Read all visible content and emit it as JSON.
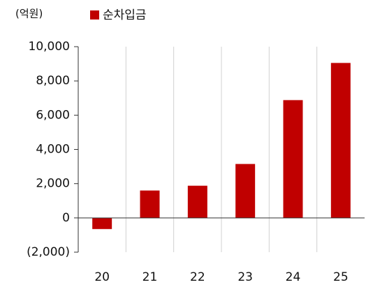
{
  "chart_data": {
    "type": "bar",
    "unit_label": "(억원)",
    "categories": [
      "20",
      "21",
      "22",
      "23",
      "24",
      "25"
    ],
    "series": [
      {
        "name": "순차입금",
        "color": "#c00000",
        "values": [
          -650,
          1600,
          1880,
          3150,
          6880,
          9050
        ]
      }
    ],
    "ylim": [
      -2000,
      10000
    ],
    "yticks": [
      {
        "value": -2000,
        "label": "(2,000)"
      },
      0,
      {
        "value": 2000,
        "label": "2,000"
      },
      {
        "value": 4000,
        "label": "4,000"
      },
      {
        "value": 6000,
        "label": "6,000"
      },
      {
        "value": 8000,
        "label": "8,000"
      },
      {
        "value": 10000,
        "label": "10,000"
      }
    ],
    "legend": "top"
  }
}
